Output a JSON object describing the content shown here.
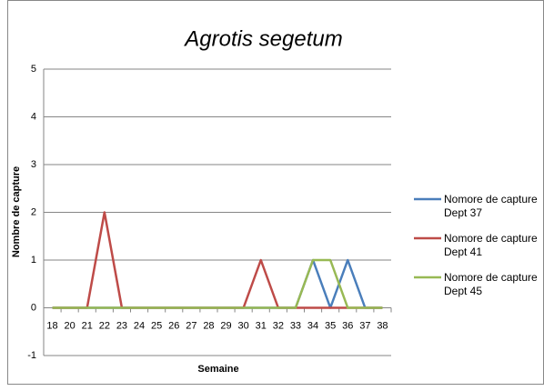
{
  "chart_data": {
    "type": "line",
    "title": "Agrotis segetum",
    "x_label": "Semaine",
    "y_label": "Nombre de capture",
    "categories": [
      "18",
      "20",
      "21",
      "22",
      "23",
      "24",
      "25",
      "26",
      "27",
      "28",
      "29",
      "30",
      "31",
      "32",
      "33",
      "34",
      "35",
      "36",
      "37",
      "38"
    ],
    "series": [
      {
        "name": "Nomore de capture Dept 37",
        "color": "#4a7ebb",
        "values": [
          0,
          0,
          0,
          0,
          0,
          0,
          0,
          0,
          0,
          0,
          0,
          0,
          0,
          0,
          0,
          1,
          0,
          1,
          0,
          0
        ]
      },
      {
        "name": "Nomore de capture Dept 41",
        "color": "#be4b48",
        "values": [
          0,
          0,
          0,
          2,
          0,
          0,
          0,
          0,
          0,
          0,
          0,
          0,
          1,
          0,
          0,
          0,
          0,
          0,
          0,
          0
        ]
      },
      {
        "name": "Nomore de capture Dept 45",
        "color": "#98b954",
        "values": [
          0,
          0,
          0,
          0,
          0,
          0,
          0,
          0,
          0,
          0,
          0,
          0,
          0,
          0,
          0,
          1,
          1,
          0,
          0,
          0
        ]
      }
    ],
    "ylim": [
      -1,
      5
    ],
    "yticks": [
      -1,
      0,
      1,
      2,
      3,
      4,
      5
    ],
    "grid": true,
    "legend": "right"
  }
}
